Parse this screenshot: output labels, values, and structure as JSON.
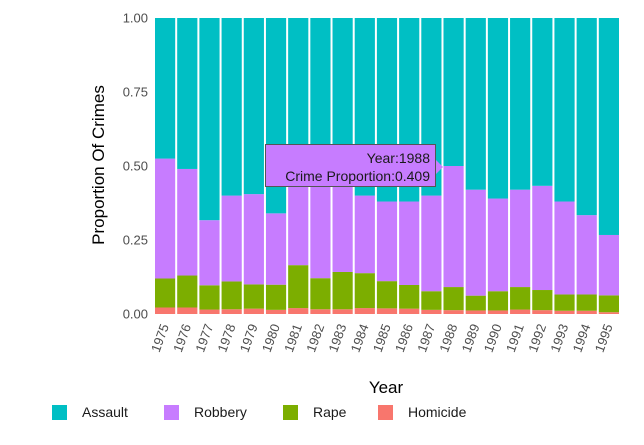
{
  "chart_data": {
    "type": "bar",
    "stacked": true,
    "categories": [
      "1975",
      "1976",
      "1977",
      "1978",
      "1979",
      "1980",
      "1981",
      "1982",
      "1983",
      "1984",
      "1985",
      "1986",
      "1987",
      "1988",
      "1989",
      "1990",
      "1991",
      "1992",
      "1993",
      "1994",
      "1995"
    ],
    "series": [
      {
        "name": "Homicide",
        "color": "#F8766D",
        "values": [
          0.022,
          0.022,
          0.015,
          0.016,
          0.018,
          0.014,
          0.02,
          0.016,
          0.016,
          0.02,
          0.019,
          0.018,
          0.014,
          0.013,
          0.012,
          0.012,
          0.015,
          0.013,
          0.011,
          0.011,
          0.006
        ]
      },
      {
        "name": "Rape",
        "color": "#7CAE00",
        "values": [
          0.098,
          0.108,
          0.082,
          0.094,
          0.082,
          0.085,
          0.145,
          0.105,
          0.126,
          0.118,
          0.092,
          0.08,
          0.063,
          0.078,
          0.05,
          0.065,
          0.076,
          0.068,
          0.055,
          0.055,
          0.057
        ]
      },
      {
        "name": "Robbery",
        "color": "#C77CFF",
        "values": [
          0.405,
          0.36,
          0.22,
          0.29,
          0.305,
          0.241,
          0.275,
          0.319,
          0.298,
          0.262,
          0.269,
          0.282,
          0.323,
          0.409,
          0.358,
          0.313,
          0.329,
          0.352,
          0.314,
          0.268,
          0.204
        ]
      },
      {
        "name": "Assault",
        "color": "#00BFC4",
        "values": [
          0.475,
          0.51,
          0.683,
          0.6,
          0.595,
          0.66,
          0.56,
          0.56,
          0.56,
          0.6,
          0.62,
          0.62,
          0.6,
          0.5,
          0.58,
          0.61,
          0.58,
          0.567,
          0.62,
          0.666,
          0.733
        ]
      }
    ],
    "legend_order": [
      "Assault",
      "Robbery",
      "Rape",
      "Homicide"
    ],
    "xlabel": "Year",
    "ylabel": "Proportion Of Crimes",
    "ylim": [
      0,
      1
    ],
    "yticks": [
      "0.00",
      "0.25",
      "0.50",
      "0.75",
      "1.00"
    ],
    "legend_position": "bottom",
    "grid": false
  },
  "tooltip": {
    "line1": "Year:1988",
    "line2": "Crime Proportion:0.409",
    "background": "#C77CFF"
  }
}
